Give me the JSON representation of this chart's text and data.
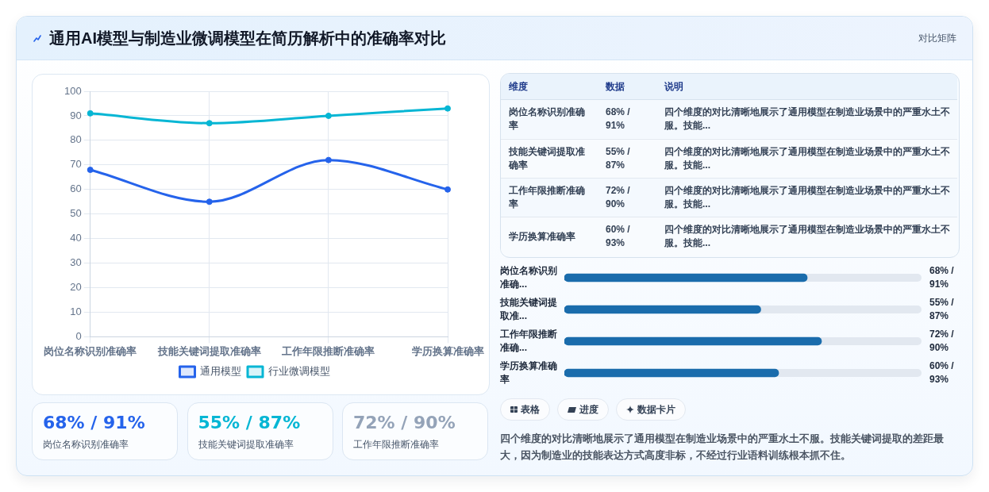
{
  "chart_data": [
    {
      "type": "other",
      "title": "通用AI模型与制造业微调模型在简历解析中的准确率对比",
      "subtitle": "对比矩阵"
    },
    {
      "type": "line",
      "categories": [
        "岗位名称识别准确率",
        "技能关键词提取准确率",
        "工作年限推断准确率",
        "学历换算准确率"
      ],
      "series": [
        {
          "name": "通用模型",
          "color": "#2563eb",
          "values": [
            68,
            55,
            72,
            60
          ]
        },
        {
          "name": "行业微调模型",
          "color": "#06b6d4",
          "values": [
            91,
            87,
            90,
            93
          ]
        }
      ],
      "ylim": [
        0,
        100
      ],
      "yticks": [
        0,
        10,
        20,
        30,
        40,
        50,
        60,
        70,
        80,
        90,
        100
      ],
      "grid": true,
      "legend": "bottom",
      "marker": "circle"
    },
    {
      "type": "other",
      "categories": [
        "岗位名称识别准确率",
        "技能关键词提取准确率",
        "工作年限推断准确率",
        "学历换算准确率"
      ],
      "annotations": [
        "维度",
        "数据",
        "说明",
        "68% / 91%",
        "四个维度的对比清晰地展示了通用模型在制造业场景中的严重水土不服。技能...",
        "55% / 87%",
        "四个维度的对比清晰地展示了通用模型在制造业场景中的严重水土不服。技能...",
        "72% / 90%",
        "四个维度的对比清晰地展示了通用模型在制造业场景中的严重水土不服。技能...",
        "60% / 93%",
        "四个维度的对比清晰地展示了通用模型在制造业场景中的严重水土不服。技能..."
      ]
    },
    {
      "type": "bar",
      "orientation": "horizontal",
      "categories": [
        "岗位名称识别准确...",
        "技能关键词提取准...",
        "工作年限推断准确...",
        "学历换算准确率"
      ],
      "values": [
        68,
        55,
        72,
        60
      ],
      "value_labels": [
        "68% / 91%",
        "55% / 87%",
        "72% / 90%",
        "60% / 93%"
      ],
      "color": "#1a6cac",
      "xlim": [
        0,
        100
      ],
      "tick_labels": "y"
    },
    {
      "type": "other",
      "categories": [
        "岗位名称识别准确率",
        "技能关键词提取准确率",
        "工作年限推断准确率"
      ],
      "annotations": [
        "68% / 91%",
        "55% / 87%",
        "72% / 90%"
      ]
    },
    {
      "type": "other",
      "annotations": [
        "表格",
        "进度",
        "数据卡片",
        "四个维度的对比清晰地展示了通用模型在制造业场景中的严重水土不服。技能关键词提取的差距最大，因为制造业的技能表达方式高度非标，不经过行业语料训练根本抓不住。"
      ]
    }
  ]
}
